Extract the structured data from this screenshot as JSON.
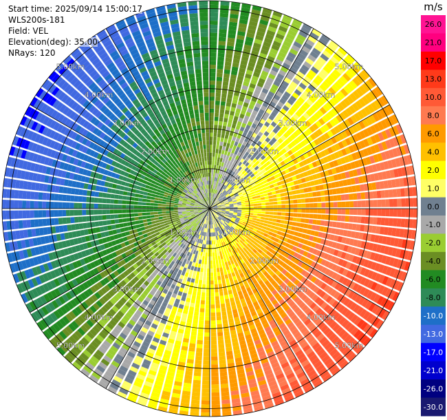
{
  "header": {
    "start_time": "Start time: 2025/09/14 15:00:17",
    "instrument": "WLS200s-181",
    "field": "Field: VEL",
    "elevation": "Elevation(deg): 35.00",
    "nrays": "NRays: 120"
  },
  "chart_data": {
    "type": "heatmap",
    "projection": "polar-ppi",
    "field": "VEL",
    "rays": 120,
    "range_rings_km": [
      1,
      2,
      3,
      4,
      5
    ],
    "range_ring_labels": [
      "1.00km",
      "2.00km",
      "3.00km",
      "4.00km",
      "5.00km"
    ],
    "max_range_km": 5.2,
    "grid": true,
    "colorbar": {
      "unit": "m/s",
      "tick_labels": [
        "26.0",
        "21.0",
        "17.0",
        "13.0",
        "10.0",
        "8.0",
        "6.0",
        "4.0",
        "2.0",
        "1.0",
        "0.0",
        "-1.0",
        "-2.0",
        "-4.0",
        "-6.0",
        "-8.0",
        "-10.0",
        "-13.0",
        "-17.0",
        "-21.0",
        "-26.0",
        "-30.0"
      ],
      "colors": [
        "#ff1493",
        "#ff007f",
        "#ff0000",
        "#ff3a1a",
        "#ff5a36",
        "#ff7a50",
        "#ff9a00",
        "#ffc000",
        "#ffff00",
        "#ffff66",
        "#708090",
        "#a9a9a9",
        "#9acd32",
        "#6b8e23",
        "#228b22",
        "#2e8b57",
        "#1e6fc8",
        "#4169e1",
        "#0000ff",
        "#0000cd",
        "#000080",
        "#191970"
      ]
    },
    "velocity_pattern": {
      "positive_sector": "east-southeast",
      "negative_sector": "west-northwest",
      "zero_line": "northeast-southwest",
      "core_magnitude_ms": 2,
      "outer_magnitude_ms": 13
    }
  }
}
